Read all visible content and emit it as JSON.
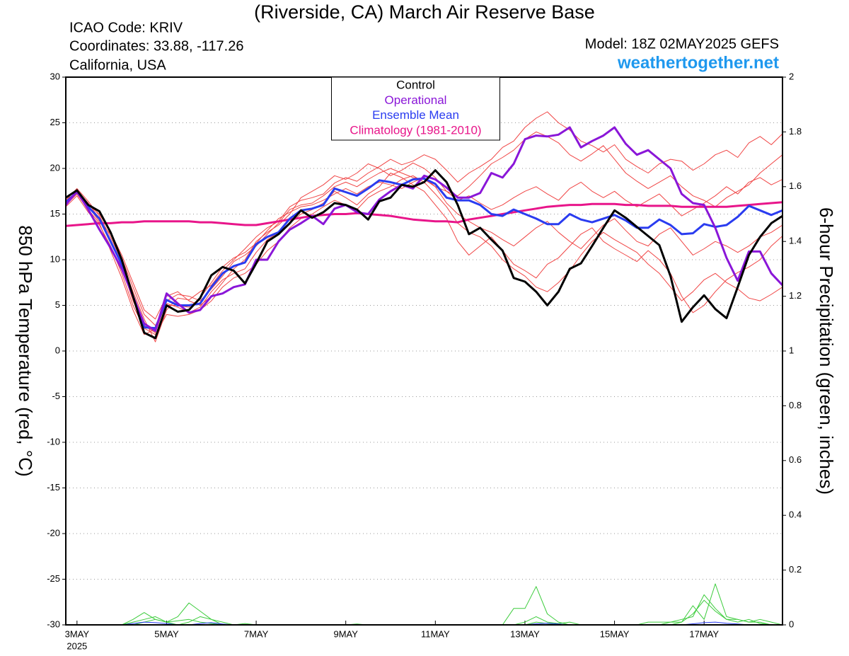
{
  "chart_data": {
    "type": "line",
    "title": "(Riverside, CA) March Air Reserve Base",
    "info": [
      "ICAO Code: KRIV",
      "Coordinates: 33.88, -117.26",
      "California, USA"
    ],
    "model": "Model: 18Z 02MAY2025 GEFS",
    "site": "weathertogether.net",
    "y_label": "850 hPa Temperature (red, °C)",
    "y2_label": "6-hour Precipitation (green, inches)",
    "x_year": "2025",
    "x": [
      0,
      6,
      12,
      18,
      24,
      30,
      36,
      42,
      48,
      54,
      60,
      66,
      72,
      78,
      84,
      90,
      96,
      102,
      108,
      114,
      120,
      126,
      132,
      138,
      144,
      150,
      156,
      162,
      168,
      174,
      180,
      186,
      192,
      198,
      204,
      210,
      216,
      222,
      228,
      234,
      240,
      246,
      252,
      258,
      264,
      270,
      276,
      282,
      288,
      294,
      300,
      306,
      312,
      318,
      324,
      330,
      336,
      342,
      348,
      354,
      360,
      366,
      372,
      378,
      384
    ],
    "xlim": [
      0,
      384
    ],
    "xticks": [
      {
        "value": 6,
        "label": "3MAY"
      },
      {
        "value": 54,
        "label": "5MAY"
      },
      {
        "value": 102,
        "label": "7MAY"
      },
      {
        "value": 150,
        "label": "9MAY"
      },
      {
        "value": 198,
        "label": "11MAY"
      },
      {
        "value": 246,
        "label": "13MAY"
      },
      {
        "value": 294,
        "label": "15MAY"
      },
      {
        "value": 342,
        "label": "17MAY"
      }
    ],
    "ylim": [
      -30,
      30
    ],
    "yticks": [
      -30,
      -25,
      -20,
      -15,
      -10,
      -5,
      0,
      5,
      10,
      15,
      20,
      25,
      30
    ],
    "y2lim": [
      0,
      2
    ],
    "y2ticks": [
      0,
      0.2,
      0.4,
      0.6,
      0.8,
      1,
      1.2,
      1.4,
      1.6,
      1.8,
      2
    ],
    "grid": true,
    "legend": "top-center",
    "series": [
      {
        "color": "#f04545",
        "values": [
          16.5,
          17.8,
          16.4,
          14.8,
          12.5,
          9.8,
          6.5,
          3.5,
          1.0,
          4.5,
          5.8,
          5.6,
          6.5,
          7.2,
          8.8,
          10.0,
          11.2,
          12.5,
          13.5,
          14.2,
          15.8,
          16.5,
          16.8,
          17.2,
          18.4,
          19.0,
          18.6,
          19.5,
          20.2,
          21.0,
          20.4,
          20.8,
          21.5,
          21.0,
          19.8,
          18.5,
          19.5,
          20.2,
          21.0,
          22.3,
          23.0,
          24.5,
          25.5,
          26.2,
          25.0,
          24.2,
          23.0,
          22.5,
          21.8,
          22.6,
          21.0,
          20.2,
          19.5,
          20.5,
          21.0,
          20.8,
          19.8,
          20.5,
          21.5,
          22.0,
          21.2,
          22.8,
          23.5,
          22.6,
          23.8
        ]
      },
      {
        "color": "#f04545",
        "values": [
          16.0,
          17.2,
          15.5,
          14.0,
          11.0,
          8.0,
          4.5,
          1.8,
          2.4,
          5.2,
          4.8,
          4.2,
          4.8,
          6.5,
          7.8,
          8.5,
          9.0,
          10.8,
          12.2,
          13.0,
          14.0,
          15.0,
          15.5,
          16.2,
          17.5,
          16.8,
          16.0,
          17.2,
          18.0,
          19.5,
          19.0,
          18.2,
          17.5,
          16.0,
          14.5,
          12.0,
          10.5,
          11.5,
          12.5,
          11.0,
          9.5,
          8.8,
          8.0,
          9.5,
          10.2,
          11.5,
          12.8,
          13.5,
          12.0,
          11.2,
          10.5,
          9.8,
          11.0,
          10.0,
          8.5,
          6.0,
          4.2,
          5.0,
          6.5,
          7.8,
          8.6,
          9.2,
          10.0,
          11.5,
          12.6
        ]
      },
      {
        "color": "#f04545",
        "values": [
          16.8,
          17.5,
          16.0,
          15.0,
          13.0,
          10.5,
          7.5,
          4.5,
          3.5,
          6.0,
          6.5,
          5.5,
          5.0,
          6.0,
          7.5,
          9.0,
          10.0,
          12.0,
          13.0,
          13.8,
          15.0,
          16.8,
          17.5,
          18.2,
          19.2,
          18.8,
          19.5,
          20.5,
          20.0,
          19.2,
          19.8,
          20.6,
          20.0,
          19.0,
          17.5,
          17.0,
          18.0,
          19.2,
          20.5,
          21.2,
          22.0,
          23.2,
          24.0,
          23.5,
          22.8,
          21.5,
          20.8,
          21.6,
          22.5,
          21.0,
          19.5,
          18.6,
          17.8,
          18.5,
          19.2,
          18.0,
          17.0,
          16.5,
          15.8,
          16.8,
          17.5,
          18.2,
          19.5,
          20.5,
          21.5
        ]
      },
      {
        "color": "#f04545",
        "values": [
          15.8,
          17.0,
          15.2,
          13.8,
          11.5,
          8.5,
          5.0,
          2.5,
          1.8,
          4.0,
          3.8,
          4.0,
          4.5,
          5.5,
          7.0,
          8.0,
          8.5,
          9.5,
          11.0,
          12.0,
          13.5,
          14.5,
          15.0,
          15.8,
          16.5,
          16.0,
          15.5,
          16.8,
          17.5,
          18.0,
          18.8,
          19.2,
          18.5,
          17.2,
          15.8,
          14.0,
          13.0,
          12.5,
          11.5,
          10.0,
          9.0,
          8.2,
          7.0,
          6.5,
          7.5,
          8.8,
          10.5,
          12.0,
          13.0,
          12.2,
          11.5,
          10.8,
          9.5,
          8.5,
          7.0,
          5.5,
          6.5,
          7.8,
          8.5,
          7.5,
          6.8,
          5.8,
          5.5,
          6.2,
          7.0
        ]
      },
      {
        "color": "#f04545",
        "values": [
          16.2,
          17.6,
          16.2,
          14.5,
          12.2,
          9.2,
          5.5,
          2.8,
          2.0,
          5.5,
          6.2,
          6.0,
          5.5,
          6.8,
          8.2,
          9.8,
          10.5,
          11.5,
          12.8,
          14.0,
          15.5,
          16.0,
          16.2,
          17.0,
          18.0,
          18.5,
          18.0,
          18.8,
          19.5,
          20.0,
          19.5,
          19.0,
          18.8,
          18.0,
          17.5,
          16.5,
          17.0,
          16.2,
          15.5,
          16.0,
          16.8,
          17.5,
          18.0,
          17.2,
          16.5,
          17.8,
          18.5,
          17.5,
          16.8,
          17.5,
          16.5,
          15.8,
          16.5,
          17.2,
          16.0,
          14.8,
          15.5,
          16.2,
          17.0,
          18.0,
          17.2,
          18.5,
          19.0,
          18.2,
          18.8
        ]
      },
      {
        "color": "#f04545",
        "values": [
          16.6,
          17.3,
          15.8,
          14.2,
          12.8,
          10.2,
          7.0,
          4.0,
          2.8,
          5.0,
          5.0,
          4.8,
          5.8,
          7.5,
          9.2,
          10.2,
          10.8,
          11.8,
          13.2,
          14.5,
          15.2,
          15.8,
          16.0,
          16.5,
          17.2,
          17.8,
          17.2,
          18.0,
          18.5,
          18.2,
          17.8,
          18.5,
          19.0,
          18.0,
          16.2,
          15.0,
          14.2,
          13.5,
          13.0,
          12.2,
          11.5,
          12.5,
          13.5,
          14.2,
          13.0,
          12.0,
          11.2,
          12.5,
          13.8,
          14.5,
          13.2,
          12.0,
          11.5,
          12.8,
          13.5,
          12.0,
          10.5,
          11.2,
          12.0,
          11.5,
          10.8,
          11.5,
          12.5,
          13.0,
          13.8
        ]
      },
      {
        "color": "#3ccc3c",
        "axis": "y2",
        "values": [
          0,
          0,
          0,
          0,
          0,
          0,
          0.02,
          0.045,
          0.02,
          0.01,
          0.03,
          0.08,
          0.05,
          0.02,
          0.01,
          0,
          0,
          0,
          0,
          0,
          0,
          0,
          0,
          0,
          0,
          0,
          0,
          0,
          0,
          0,
          0,
          0,
          0,
          0,
          0,
          0,
          0,
          0,
          0,
          0,
          0.06,
          0.06,
          0.14,
          0.04,
          0.01,
          0,
          0,
          0,
          0,
          0,
          0,
          0,
          0,
          0,
          0.01,
          0.01,
          0.07,
          0.02,
          0.15,
          0.03,
          0.02,
          0.01,
          0.01,
          0,
          0
        ]
      },
      {
        "color": "#3ccc3c",
        "axis": "y2",
        "values": [
          0,
          0,
          0,
          0,
          0,
          0,
          0.01,
          0.02,
          0.03,
          0.01,
          0,
          0.01,
          0.03,
          0.02,
          0,
          0,
          0.005,
          0,
          0,
          0,
          0,
          0,
          0,
          0,
          0,
          0,
          0.003,
          0,
          0,
          0,
          0,
          0,
          0,
          0,
          0,
          0,
          0,
          0,
          0,
          0,
          0,
          0.01,
          0.03,
          0.01,
          0.005,
          0.01,
          0,
          0,
          0,
          0,
          0,
          0,
          0.01,
          0.01,
          0.01,
          0.02,
          0.03,
          0.11,
          0.06,
          0.02,
          0.02,
          0.01,
          0.02,
          0.01,
          0
        ]
      },
      {
        "color": "#3ccc3c",
        "axis": "y2",
        "values": [
          0,
          0,
          0,
          0,
          0,
          0,
          0,
          0.01,
          0.02,
          0.01,
          0.015,
          0.02,
          0.01,
          0.005,
          0,
          0,
          0,
          0,
          0,
          0,
          0,
          0,
          0,
          0,
          0,
          0,
          0,
          0,
          0,
          0,
          0,
          0,
          0,
          0,
          0,
          0,
          0,
          0,
          0,
          0,
          0,
          0,
          0.01,
          0.005,
          0,
          0,
          0,
          0,
          0,
          0,
          0,
          0,
          0,
          0,
          0,
          0.01,
          0.04,
          0.09,
          0.05,
          0.02,
          0.01,
          0.02,
          0.005,
          0,
          0
        ]
      },
      {
        "color": "#2a3cf0",
        "axis": "y2",
        "values": [
          0,
          0,
          0,
          0,
          0,
          0,
          0.005,
          0.01,
          0.008,
          0.005,
          0,
          0,
          0.005,
          0.008,
          0.003,
          0,
          0,
          0,
          0,
          0,
          0,
          0,
          0,
          0,
          0,
          0,
          0,
          0,
          0,
          0,
          0,
          0,
          0,
          0,
          0,
          0,
          0,
          0,
          0,
          0,
          0,
          0,
          0.004,
          0.006,
          0.003,
          0,
          0,
          0,
          0,
          0,
          0,
          0,
          0,
          0,
          0,
          0,
          0.004,
          0.008,
          0.01,
          0.006,
          0.003,
          0,
          0,
          0,
          0
        ]
      },
      {
        "name": "Climatology (1981-2010)",
        "color": "#e8158a",
        "values": [
          13.7,
          13.8,
          13.9,
          14.0,
          14.0,
          14.1,
          14.1,
          14.2,
          14.2,
          14.2,
          14.2,
          14.2,
          14.1,
          14.1,
          14.0,
          13.9,
          13.8,
          13.8,
          14.0,
          14.2,
          14.4,
          14.6,
          14.8,
          14.9,
          15.0,
          15.0,
          15.1,
          15.0,
          14.9,
          14.8,
          14.6,
          14.4,
          14.3,
          14.2,
          14.2,
          14.1,
          14.4,
          14.6,
          14.8,
          15.0,
          15.2,
          15.4,
          15.6,
          15.8,
          15.9,
          16.0,
          16.0,
          16.1,
          16.1,
          16.1,
          16.0,
          16.0,
          15.9,
          15.9,
          15.9,
          15.8,
          15.8,
          15.8,
          15.8,
          15.8,
          15.9,
          16.0,
          16.1,
          16.2,
          16.3
        ]
      },
      {
        "name": "Ensemble Mean",
        "color": "#2a3cf0",
        "values": [
          16.3,
          17.4,
          15.8,
          14.5,
          12.0,
          9.5,
          6.0,
          2.6,
          2.5,
          5.6,
          5.0,
          5.0,
          5.2,
          7.0,
          8.5,
          9.3,
          9.7,
          11.7,
          12.5,
          13.0,
          14.5,
          15.4,
          15.6,
          16.0,
          17.8,
          17.4,
          17.0,
          17.8,
          18.7,
          18.5,
          18.2,
          18.8,
          18.9,
          18.3,
          16.8,
          16.5,
          16.5,
          16.0,
          15.0,
          14.8,
          15.5,
          15.0,
          14.5,
          13.9,
          13.9,
          15.0,
          14.4,
          14.1,
          14.5,
          14.9,
          14.3,
          13.5,
          13.5,
          14.4,
          13.8,
          12.8,
          12.9,
          13.9,
          13.6,
          13.8,
          14.7,
          15.9,
          15.4,
          14.9,
          15.4
        ]
      },
      {
        "name": "Operational",
        "color": "#8a16d8",
        "values": [
          16.0,
          17.5,
          15.5,
          13.3,
          11.3,
          9.0,
          6.0,
          3.0,
          2.2,
          6.3,
          5.2,
          4.2,
          4.5,
          6.0,
          6.3,
          7.0,
          7.3,
          10.0,
          10.0,
          12.0,
          13.3,
          14.0,
          14.8,
          13.9,
          15.6,
          16.0,
          15.2,
          15.0,
          16.6,
          17.5,
          18.2,
          17.8,
          19.2,
          18.8,
          17.9,
          16.8,
          16.8,
          17.3,
          19.5,
          19.0,
          20.5,
          23.2,
          23.6,
          23.5,
          23.7,
          24.5,
          22.3,
          23.0,
          23.6,
          24.5,
          22.7,
          21.5,
          22.0,
          21.0,
          20.0,
          17.2,
          16.2,
          16.0,
          13.5,
          10.2,
          7.7,
          10.9,
          10.9,
          8.5,
          7.2
        ]
      },
      {
        "name": "Control",
        "color": "#000000",
        "values": [
          16.8,
          17.6,
          16.0,
          15.3,
          13.0,
          10.0,
          6.0,
          2.0,
          1.4,
          5.0,
          4.3,
          4.5,
          5.8,
          8.3,
          9.2,
          8.8,
          7.4,
          9.6,
          12.0,
          12.8,
          14.0,
          15.4,
          14.6,
          15.2,
          16.2,
          16.0,
          15.5,
          14.4,
          16.4,
          16.8,
          18.2,
          18.0,
          18.5,
          19.8,
          18.5,
          16.0,
          12.8,
          13.5,
          12.2,
          11.0,
          8.0,
          7.6,
          6.5,
          5.0,
          6.5,
          9.0,
          9.6,
          11.5,
          13.5,
          15.4,
          14.6,
          13.6,
          12.6,
          11.6,
          8.2,
          3.2,
          4.8,
          6.1,
          4.6,
          3.6,
          7.0,
          10.5,
          12.5,
          14.0,
          14.8
        ]
      }
    ]
  }
}
